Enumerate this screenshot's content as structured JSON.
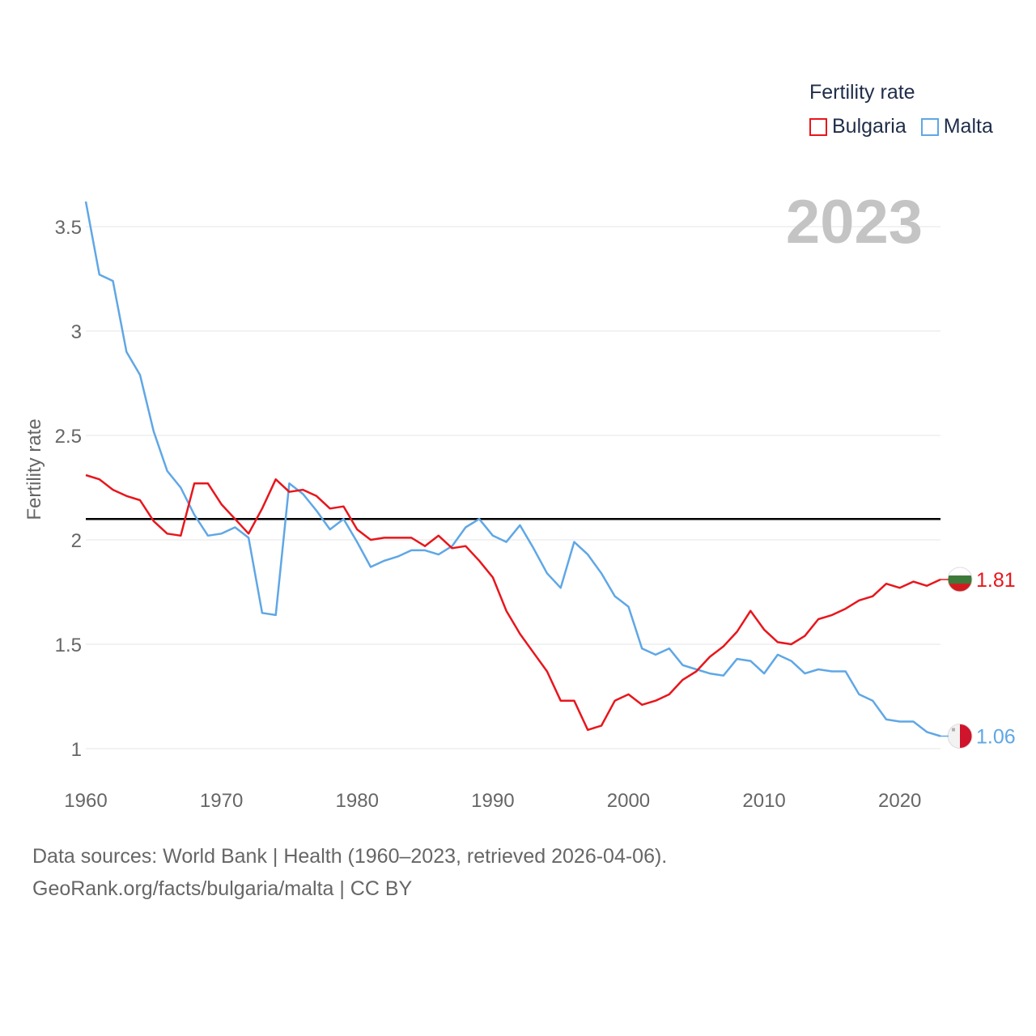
{
  "legend": {
    "title": "Fertility rate",
    "items": [
      {
        "label": "Bulgaria",
        "color": "#e8161c"
      },
      {
        "label": "Malta",
        "color": "#5fa7e6"
      }
    ]
  },
  "year_badge": "2023",
  "footer": {
    "line1": "Data sources: World Bank | Health (1960–2023, retrieved 2026-04-06).",
    "line2": "GeoRank.org/facts/bulgaria/malta | CC BY"
  },
  "chart_data": {
    "type": "line",
    "title": "Fertility rate",
    "xlabel": "",
    "ylabel": "Fertility rate",
    "xlim": [
      1960,
      2023
    ],
    "ylim": [
      0.9,
      3.65
    ],
    "x_ticks": [
      1960,
      1970,
      1980,
      1990,
      2000,
      2010,
      2020
    ],
    "y_ticks": [
      1,
      1.5,
      2,
      2.5,
      3,
      3.5
    ],
    "y_tick_labels": [
      "1",
      "1.5",
      "2",
      "2.5",
      "3",
      "3.5"
    ],
    "reference_line": {
      "y": 2.1,
      "color": "#000000"
    },
    "x": [
      1960,
      1961,
      1962,
      1963,
      1964,
      1965,
      1966,
      1967,
      1968,
      1969,
      1970,
      1971,
      1972,
      1973,
      1974,
      1975,
      1976,
      1977,
      1978,
      1979,
      1980,
      1981,
      1982,
      1983,
      1984,
      1985,
      1986,
      1987,
      1988,
      1989,
      1990,
      1991,
      1992,
      1993,
      1994,
      1995,
      1996,
      1997,
      1998,
      1999,
      2000,
      2001,
      2002,
      2003,
      2004,
      2005,
      2006,
      2007,
      2008,
      2009,
      2010,
      2011,
      2012,
      2013,
      2014,
      2015,
      2016,
      2017,
      2018,
      2019,
      2020,
      2021,
      2022,
      2023
    ],
    "series": [
      {
        "name": "Bulgaria",
        "color": "#e8161c",
        "end_label": "1.81",
        "values": [
          2.31,
          2.29,
          2.24,
          2.21,
          2.19,
          2.09,
          2.03,
          2.02,
          2.27,
          2.27,
          2.17,
          2.1,
          2.03,
          2.15,
          2.29,
          2.23,
          2.24,
          2.21,
          2.15,
          2.16,
          2.05,
          2.0,
          2.01,
          2.01,
          2.01,
          1.97,
          2.02,
          1.96,
          1.97,
          1.9,
          1.82,
          1.66,
          1.55,
          1.46,
          1.37,
          1.23,
          1.23,
          1.09,
          1.11,
          1.23,
          1.26,
          1.21,
          1.23,
          1.26,
          1.33,
          1.37,
          1.44,
          1.49,
          1.56,
          1.66,
          1.57,
          1.51,
          1.5,
          1.54,
          1.62,
          1.64,
          1.67,
          1.71,
          1.73,
          1.79,
          1.77,
          1.8,
          1.78,
          1.81
        ]
      },
      {
        "name": "Malta",
        "color": "#5fa7e6",
        "end_label": "1.06",
        "values": [
          3.62,
          3.27,
          3.24,
          2.9,
          2.79,
          2.52,
          2.33,
          2.25,
          2.12,
          2.02,
          2.03,
          2.06,
          2.01,
          1.65,
          1.64,
          2.27,
          2.22,
          2.14,
          2.05,
          2.1,
          1.99,
          1.87,
          1.9,
          1.92,
          1.95,
          1.95,
          1.93,
          1.97,
          2.06,
          2.1,
          2.02,
          1.99,
          2.07,
          1.96,
          1.84,
          1.77,
          1.99,
          1.93,
          1.84,
          1.73,
          1.68,
          1.48,
          1.45,
          1.48,
          1.4,
          1.38,
          1.36,
          1.35,
          1.43,
          1.42,
          1.36,
          1.45,
          1.42,
          1.36,
          1.38,
          1.37,
          1.37,
          1.26,
          1.23,
          1.14,
          1.13,
          1.13,
          1.08,
          1.06
        ]
      }
    ]
  }
}
